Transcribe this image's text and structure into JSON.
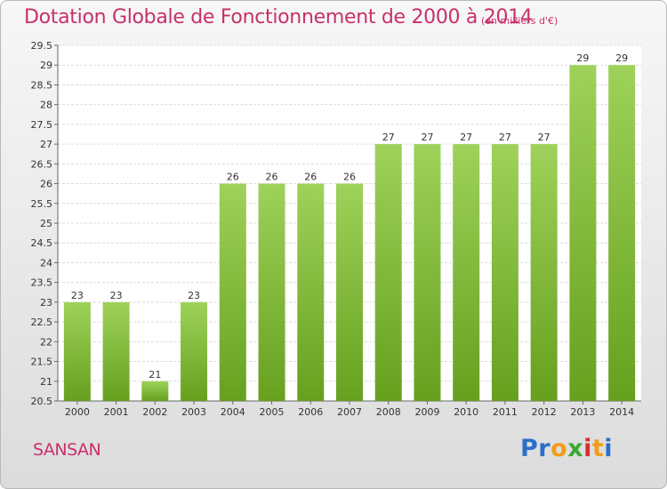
{
  "header": {
    "title": "Dotation Globale de Fonctionnement de 2000 à 2014",
    "unit": "(en milliers d'€)"
  },
  "footer": {
    "commune": "SANSAN",
    "logo_letters": [
      "P",
      "r",
      "o",
      "x",
      "i",
      "t",
      "i"
    ]
  },
  "colors": {
    "accent": "#c8306a",
    "bar_light": "#9ed25a",
    "bar_dark": "#66a01e",
    "logo": [
      "#2b6fc9",
      "#2b6fc9",
      "#f39c1a",
      "#39a935",
      "#d62f2f",
      "#f39c1a",
      "#2b6fc9"
    ]
  },
  "chart_data": {
    "type": "bar",
    "categories": [
      "2000",
      "2001",
      "2002",
      "2003",
      "2004",
      "2005",
      "2006",
      "2007",
      "2008",
      "2009",
      "2010",
      "2011",
      "2012",
      "2013",
      "2014"
    ],
    "values": [
      23,
      23,
      21,
      23,
      26,
      26,
      26,
      26,
      27,
      27,
      27,
      27,
      27,
      29,
      29
    ],
    "data_labels": [
      "23",
      "23",
      "21",
      "23",
      "26",
      "26",
      "26",
      "26",
      "27",
      "27",
      "27",
      "27",
      "27",
      "29",
      "29"
    ],
    "title": "Dotation Globale de Fonctionnement de 2000 à 2014",
    "subtitle": "(en milliers d'€)",
    "xlabel": "",
    "ylabel": "",
    "ylim": [
      20.5,
      29.5
    ],
    "yticks": [
      20.5,
      21,
      21.5,
      22,
      22.5,
      23,
      23.5,
      24,
      24.5,
      25,
      25.5,
      26,
      26.5,
      27,
      27.5,
      28,
      28.5,
      29,
      29.5
    ],
    "ytick_labels": [
      "20.5",
      "21",
      "21.5",
      "22",
      "22.5",
      "23",
      "23.5",
      "24",
      "24.5",
      "25",
      "25.5",
      "26",
      "26.5",
      "27",
      "27.5",
      "28",
      "28.5",
      "29",
      "29.5"
    ],
    "grid": true,
    "legend": "none"
  }
}
